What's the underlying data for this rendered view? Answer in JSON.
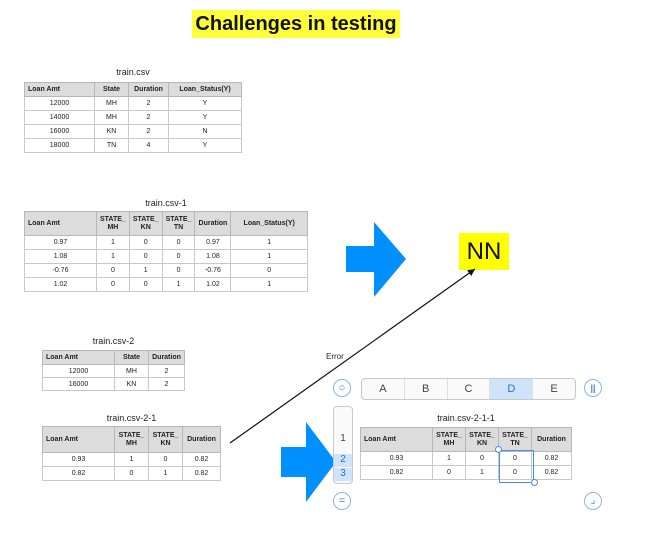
{
  "title": "Challenges in testing",
  "tables": {
    "t1": {
      "caption": "train.csv",
      "headers": [
        "Loan Amt",
        "State",
        "Duration",
        "Loan_Status(Y)"
      ],
      "rows": [
        [
          "12000",
          "MH",
          "2",
          "Y"
        ],
        [
          "14000",
          "MH",
          "2",
          "Y"
        ],
        [
          "16000",
          "KN",
          "2",
          "N"
        ],
        [
          "18000",
          "TN",
          "4",
          "Y"
        ]
      ]
    },
    "t2": {
      "caption": "train.csv-1",
      "headers": [
        "Loan Amt",
        "STATE_ MH",
        "STATE_ KN",
        "STATE_ TN",
        "Duration",
        "Loan_Status(Y)"
      ],
      "rows": [
        [
          "0.97",
          "1",
          "0",
          "0",
          "0.97",
          "1"
        ],
        [
          "1.08",
          "1",
          "0",
          "0",
          "1.08",
          "1"
        ],
        [
          "-0.76",
          "0",
          "1",
          "0",
          "-0.76",
          "0"
        ],
        [
          "1.02",
          "0",
          "0",
          "1",
          "1.02",
          "1"
        ]
      ]
    },
    "t3": {
      "caption": "train.csv-2",
      "headers": [
        "Loan Amt",
        "State",
        "Duration"
      ],
      "rows": [
        [
          "12000",
          "MH",
          "2"
        ],
        [
          "16000",
          "KN",
          "2"
        ]
      ]
    },
    "t4": {
      "caption": "train.csv-2-1",
      "headers": [
        "Loan Amt",
        "STATE_ MH",
        "STATE_ KN",
        "Duration"
      ],
      "rows": [
        [
          "0.93",
          "1",
          "0",
          "0.82"
        ],
        [
          "0.82",
          "0",
          "1",
          "0.82"
        ]
      ]
    },
    "t5": {
      "caption": "train.csv-2-1-1",
      "headers": [
        "Loan Amt",
        "STATE_ MH",
        "STATE_ KN",
        "STATE_ TN",
        "Duration"
      ],
      "rows": [
        [
          "0.93",
          "1",
          "0",
          "0",
          "0.82"
        ],
        [
          "0.82",
          "0",
          "1",
          "0",
          "0.82"
        ]
      ]
    }
  },
  "nn_label": "NN",
  "error_label": "Error",
  "column_bar": {
    "columns": [
      "A",
      "B",
      "C",
      "D",
      "E"
    ],
    "selected": "D"
  },
  "row_bar": {
    "rows": [
      "1",
      "2",
      "3"
    ],
    "selected": [
      "2",
      "3"
    ]
  },
  "controls": {
    "add_circle_icon": "circle-icon",
    "pause_icon": "pause-icon",
    "equals_icon": "equals-icon",
    "corner_icon": "corner-resize-icon"
  },
  "colors": {
    "title_highlight": "#ffff3a",
    "arrow_blue": "#0090ff",
    "nn_highlight": "#ffff00",
    "selection_blue": "#4a8ee0"
  }
}
